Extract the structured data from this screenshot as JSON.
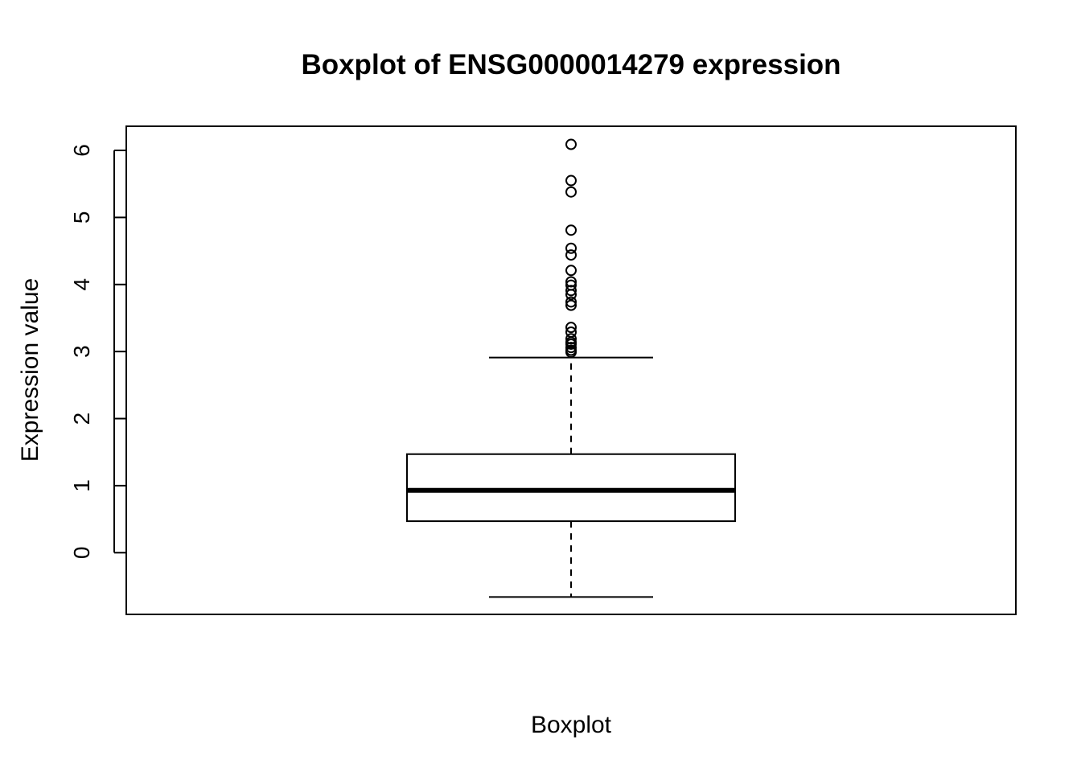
{
  "chart_data": {
    "type": "boxplot",
    "title": "Boxplot of ENSG0000014279 expression",
    "xlabel": "Boxplot",
    "ylabel": "Expression value",
    "ylim": [
      -0.92,
      6.36
    ],
    "yticks": [
      0,
      1,
      2,
      3,
      4,
      5,
      6
    ],
    "ytick_labels": [
      "0",
      "1",
      "2",
      "3",
      "4",
      "5",
      "6"
    ],
    "grid": false,
    "box": {
      "lower_whisker": -0.66,
      "q1": 0.47,
      "median": 0.93,
      "q3": 1.47,
      "upper_whisker": 2.91
    },
    "outliers": [
      6.09,
      5.55,
      5.38,
      4.81,
      4.54,
      4.44,
      4.21,
      4.04,
      3.99,
      3.91,
      3.85,
      3.74,
      3.69,
      3.36,
      3.29,
      3.19,
      3.14,
      3.11,
      3.06,
      3.02,
      2.99
    ],
    "colors": {
      "ink": "#000000",
      "background": "#ffffff"
    }
  }
}
